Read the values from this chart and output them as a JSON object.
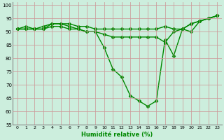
{
  "x": [
    0,
    1,
    2,
    3,
    4,
    5,
    6,
    7,
    8,
    9,
    10,
    11,
    12,
    13,
    14,
    15,
    16,
    17,
    18,
    19,
    20,
    21,
    22,
    23
  ],
  "line_min": [
    91,
    91,
    91,
    91,
    93,
    93,
    92,
    91,
    90,
    90,
    84,
    76,
    73,
    66,
    64,
    62,
    64,
    87,
    81,
    91,
    90,
    94,
    95,
    96
  ],
  "line_max": [
    91,
    92,
    91,
    92,
    93,
    93,
    93,
    92,
    92,
    91,
    91,
    91,
    91,
    91,
    91,
    91,
    91,
    92,
    91,
    91,
    93,
    94,
    95,
    96
  ],
  "line_mid": [
    91,
    91,
    91,
    91,
    92,
    92,
    91,
    91,
    90,
    90,
    89,
    88,
    88,
    88,
    88,
    88,
    88,
    86,
    90,
    91,
    93,
    94,
    95,
    96
  ],
  "xlim": [
    -0.5,
    23.5
  ],
  "ylim": [
    55,
    101
  ],
  "yticks": [
    55,
    60,
    65,
    70,
    75,
    80,
    85,
    90,
    95,
    100
  ],
  "xticks": [
    0,
    1,
    2,
    3,
    4,
    5,
    6,
    7,
    8,
    9,
    10,
    11,
    12,
    13,
    14,
    15,
    16,
    17,
    18,
    19,
    20,
    21,
    22,
    23
  ],
  "xlabel": "Humidité relative (%)",
  "line_color": "#008800",
  "bg_color": "#cceedd",
  "grid_color": "#cc9999",
  "markersize": 2.5,
  "linewidth": 1.0
}
